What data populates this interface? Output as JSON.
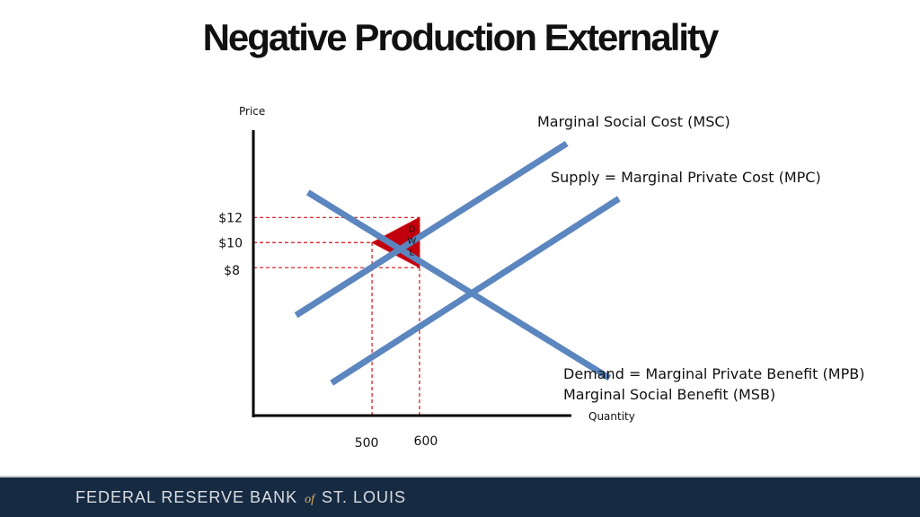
{
  "slide": {
    "title": "Negative Production Externality"
  },
  "footer": {
    "org_part1": "FEDERAL RESERVE BANK",
    "org_of": "of",
    "org_part2": "ST. LOUIS"
  },
  "colors": {
    "curve": "#5b86bf",
    "guide": "#d0141a",
    "dwl_fill": "#c0000c",
    "footer_bg": "#162a42"
  },
  "chart_data": {
    "type": "line",
    "title": "Negative Production Externality",
    "ylabel": "Price",
    "xlabel": "Quantity",
    "y_ticks": [
      {
        "value": 12,
        "label": "$12"
      },
      {
        "value": 10,
        "label": "$10"
      },
      {
        "value": 8,
        "label": "$8"
      }
    ],
    "x_ticks": [
      {
        "value": 500,
        "label": "500"
      },
      {
        "value": 600,
        "label": "600"
      }
    ],
    "series": [
      {
        "name": "Marginal Social Cost (MSC)",
        "points": [
          [
            340,
            4.2
          ],
          [
            910,
            17.9
          ]
        ]
      },
      {
        "name": "Supply = Marginal Private Cost (MPC)",
        "points": [
          [
            415,
            -1.2
          ],
          [
            1020,
            13.5
          ]
        ]
      },
      {
        "name": "Demand = Marginal Private Benefit (MPB)\nMarginal Social Benefit (MSB)",
        "label_lines": [
          "Demand = Marginal Private Benefit (MPB)",
          "Marginal Social Benefit (MSB)"
        ],
        "points": [
          [
            365,
            14.0
          ],
          [
            1000,
            -0.8
          ]
        ]
      }
    ],
    "equilibria": [
      {
        "x": 500,
        "y": 10
      },
      {
        "x": 600,
        "y": 8
      }
    ],
    "dwl": {
      "label_letters": [
        "D",
        "W",
        "L"
      ],
      "vertices": [
        [
          500,
          10
        ],
        [
          600,
          12
        ],
        [
          600,
          8
        ]
      ]
    },
    "xlim": [
      250,
      920
    ],
    "ylim": [
      -3.8,
      20.4
    ],
    "grid": false
  }
}
